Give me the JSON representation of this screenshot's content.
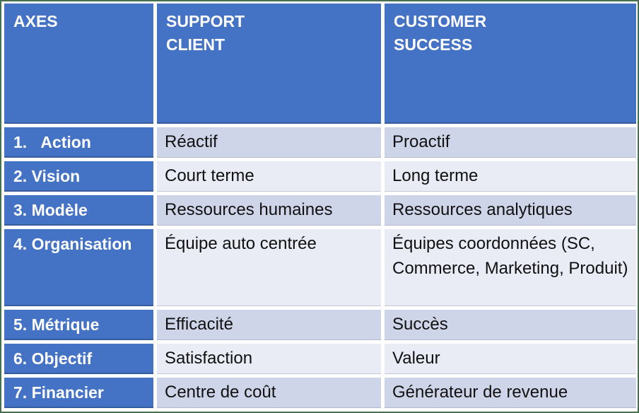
{
  "table": {
    "title": "Support Client vs Customer Success comparison table",
    "colors": {
      "header_blue": "#4472c4",
      "band_dark": "#cfd5e8",
      "band_light": "#e9ebf5",
      "frame_border_green": "#46704f",
      "header_text": "#ffffff",
      "body_text": "#111111"
    },
    "header": {
      "axes": "AXES",
      "support": "SUPPORT\nCLIENT",
      "success": "CUSTOMER\nSUCCESS"
    },
    "rows": [
      {
        "axis": "1.   Action",
        "support": "Réactif",
        "success": "Proactif"
      },
      {
        "axis": "2. Vision",
        "support": "Court terme",
        "success": "Long terme"
      },
      {
        "axis": "3. Modèle",
        "support": "Ressources humaines",
        "success": "Ressources analytiques"
      },
      {
        "axis": "4. Organisation",
        "support": "Équipe auto centrée",
        "success": "Équipes coordonnées (SC, Commerce, Marketing, Produit)"
      },
      {
        "axis": "5. Métrique",
        "support": "Efficacité",
        "success": "Succès"
      },
      {
        "axis": "6. Objectif",
        "support": "Satisfaction",
        "success": "Valeur"
      },
      {
        "axis": "7. Financier",
        "support": "Centre de coût",
        "success": "Générateur de revenue"
      }
    ]
  }
}
